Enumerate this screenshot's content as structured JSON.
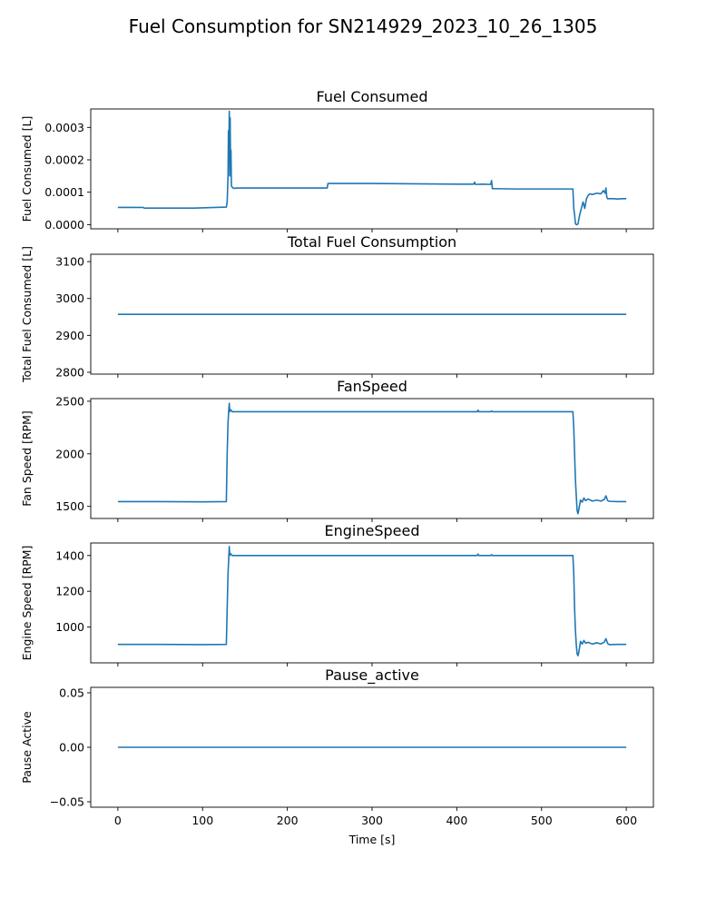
{
  "figure": {
    "suptitle": "Fuel Consumption for SN214929_2023_10_26_1305",
    "xlabel": "Time [s]",
    "line_color": "#1f77b4"
  },
  "chart_data": [
    {
      "type": "line",
      "title": "Fuel Consumed",
      "ylabel": "Fuel Consumed [L]",
      "xlim": [
        -32,
        632
      ],
      "ylim": [
        -1.3e-05,
        0.000357
      ],
      "yticks": [
        0.0,
        0.0001,
        0.0002,
        0.0003
      ],
      "ytick_labels": [
        "0.0000",
        "0.0001",
        "0.0002",
        "0.0003"
      ],
      "xticks": [
        0,
        100,
        200,
        300,
        400,
        500,
        600
      ],
      "xtick_labels": [
        "0",
        "100",
        "200",
        "300",
        "400",
        "500",
        "600"
      ],
      "show_xtick_labels": false,
      "series": [
        {
          "x": [
            0,
            30,
            31,
            60,
            90,
            128,
            129,
            130,
            130.5,
            131,
            131.5,
            132,
            132.5,
            133,
            133.5,
            134,
            135,
            137,
            140,
            180,
            247,
            248,
            250,
            300,
            350,
            400,
            420,
            421,
            422,
            430,
            440,
            441,
            442,
            443,
            470,
            500,
            537,
            538,
            539,
            540,
            541,
            542,
            543,
            545,
            547,
            549,
            551,
            553,
            555,
            557,
            560,
            565,
            570,
            573,
            575,
            576,
            577,
            578,
            580,
            585,
            590,
            595,
            600
          ],
          "y": [
            5.3e-05,
            5.3e-05,
            5.1e-05,
            5.1e-05,
            5.1e-05,
            5.4e-05,
            7e-05,
            0.00015,
            0.00029,
            0.00022,
            0.00035,
            0.00015,
            0.00033,
            0.00018,
            0.00023,
            0.00012,
            0.000115,
            0.000112,
            0.000113,
            0.000113,
            0.000113,
            0.000127,
            0.000127,
            0.000127,
            0.000126,
            0.000125,
            0.000125,
            0.000131,
            0.000124,
            0.000125,
            0.000124,
            0.000136,
            0.000111,
            0.000111,
            0.00011,
            0.00011,
            0.00011,
            5e-05,
            3e-05,
            3e-06,
            0.0,
            0.0,
            2e-06,
            3e-05,
            5e-05,
            7e-05,
            5e-05,
            8e-05,
            9e-05,
            9.5e-05,
            9.3e-05,
            9.7e-05,
            9.5e-05,
            0.000105,
            9.7e-05,
            0.000113,
            8.5e-05,
            8e-05,
            8e-05,
            8e-05,
            7.9e-05,
            8e-05,
            8e-05
          ]
        }
      ]
    },
    {
      "type": "line",
      "title": "Total Fuel Consumption",
      "ylabel": "Total Fuel Consumed [L]",
      "xlim": [
        -32,
        632
      ],
      "ylim": [
        2795,
        3120
      ],
      "yticks": [
        2800,
        2900,
        3000,
        3100
      ],
      "ytick_labels": [
        "2800",
        "2900",
        "3000",
        "3100"
      ],
      "xticks": [
        0,
        100,
        200,
        300,
        400,
        500,
        600
      ],
      "xtick_labels": [
        "0",
        "100",
        "200",
        "300",
        "400",
        "500",
        "600"
      ],
      "show_xtick_labels": false,
      "series": [
        {
          "x": [
            0,
            600
          ],
          "y": [
            2957,
            2957
          ]
        }
      ]
    },
    {
      "type": "line",
      "title": "FanSpeed",
      "ylabel": "Fan Speed [RPM]",
      "xlim": [
        -32,
        632
      ],
      "ylim": [
        1385,
        2525
      ],
      "yticks": [
        1500,
        2000,
        2500
      ],
      "ytick_labels": [
        "1500",
        "2000",
        "2500"
      ],
      "xticks": [
        0,
        100,
        200,
        300,
        400,
        500,
        600
      ],
      "xtick_labels": [
        "0",
        "100",
        "200",
        "300",
        "400",
        "500",
        "600"
      ],
      "show_xtick_labels": false,
      "series": [
        {
          "x": [
            0,
            50,
            100,
            128,
            129,
            130,
            131,
            131.5,
            132,
            133,
            135,
            200,
            300,
            400,
            424,
            425,
            426,
            440,
            441,
            442,
            500,
            537,
            538,
            539,
            540,
            541,
            542,
            543,
            544,
            546,
            548,
            550,
            552,
            555,
            560,
            565,
            570,
            574,
            576,
            578,
            580,
            590,
            600
          ],
          "y": [
            1545,
            1545,
            1543,
            1545,
            2000,
            2300,
            2430,
            2480,
            2400,
            2420,
            2400,
            2400,
            2400,
            2400,
            2400,
            2415,
            2400,
            2400,
            2408,
            2400,
            2400,
            2400,
            2250,
            2000,
            1750,
            1600,
            1460,
            1430,
            1470,
            1560,
            1540,
            1580,
            1555,
            1570,
            1550,
            1560,
            1550,
            1565,
            1600,
            1555,
            1548,
            1545,
            1545
          ]
        }
      ]
    },
    {
      "type": "line",
      "title": "EngineSpeed",
      "ylabel": "Engine Speed [RPM]",
      "xlim": [
        -32,
        632
      ],
      "ylim": [
        800,
        1470
      ],
      "yticks": [
        1000,
        1200,
        1400
      ],
      "ytick_labels": [
        "1000",
        "1200",
        "1400"
      ],
      "xticks": [
        0,
        100,
        200,
        300,
        400,
        500,
        600
      ],
      "xtick_labels": [
        "0",
        "100",
        "200",
        "300",
        "400",
        "500",
        "600"
      ],
      "show_xtick_labels": false,
      "series": [
        {
          "x": [
            0,
            50,
            100,
            128,
            129,
            130,
            131,
            131.5,
            132,
            133,
            135,
            200,
            300,
            400,
            424,
            425,
            426,
            440,
            441,
            442,
            500,
            537,
            538,
            539,
            540,
            541,
            542,
            543,
            544,
            546,
            548,
            550,
            552,
            555,
            560,
            565,
            570,
            574,
            576,
            578,
            580,
            590,
            600
          ],
          "y": [
            903,
            903,
            902,
            903,
            1100,
            1300,
            1400,
            1450,
            1400,
            1410,
            1400,
            1400,
            1400,
            1400,
            1400,
            1408,
            1400,
            1400,
            1405,
            1400,
            1400,
            1400,
            1300,
            1100,
            980,
            900,
            850,
            840,
            860,
            920,
            905,
            925,
            910,
            915,
            905,
            912,
            906,
            915,
            935,
            908,
            902,
            903,
            903
          ]
        }
      ]
    },
    {
      "type": "line",
      "title": "Pause_active",
      "ylabel": "Pause Active",
      "xlim": [
        -32,
        632
      ],
      "ylim": [
        -0.055,
        0.055
      ],
      "yticks": [
        -0.05,
        0.0,
        0.05
      ],
      "ytick_labels": [
        "−0.05",
        "0.00",
        "0.05"
      ],
      "xticks": [
        0,
        100,
        200,
        300,
        400,
        500,
        600
      ],
      "xtick_labels": [
        "0",
        "100",
        "200",
        "300",
        "400",
        "500",
        "600"
      ],
      "show_xtick_labels": true,
      "series": [
        {
          "x": [
            0,
            600
          ],
          "y": [
            0,
            0
          ]
        }
      ]
    }
  ]
}
